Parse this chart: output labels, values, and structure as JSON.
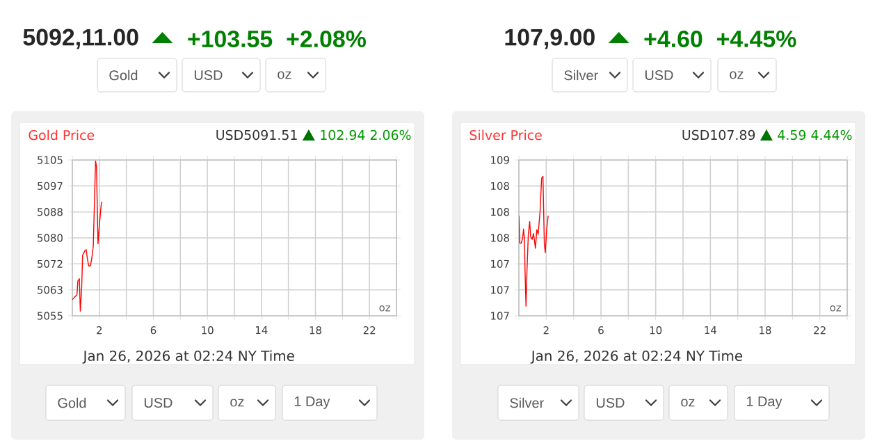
{
  "chart_data": [
    {
      "type": "line",
      "title": "Gold Price",
      "xlabel": "Jan 26, 2026 at 02:24 NY Time",
      "annotations": [
        "5092,11.00",
        "+103.55",
        "+2.08%",
        "Gold",
        "USD",
        "oz",
        "USD5091.51",
        "102.94 2.06%",
        "oz",
        "Gold",
        "USD",
        "oz",
        "1 Day"
      ],
      "x": [
        0,
        0.17,
        0.34,
        0.41,
        0.52,
        0.59,
        0.69,
        0.76,
        0.93,
        1.03,
        1.1,
        1.21,
        1.34,
        1.45,
        1.55,
        1.62,
        1.72,
        1.79,
        1.9,
        2.0,
        2.14,
        2.2
      ],
      "values": [
        5060.2,
        5061.0,
        5061.7,
        5066.2,
        5066.9,
        5056.5,
        5064.0,
        5074.4,
        5075.9,
        5076.2,
        5073.7,
        5071.0,
        5071.0,
        5073.7,
        5077.4,
        5088.6,
        5104.7,
        5102.8,
        5078.1,
        5084.1,
        5090.8,
        5091.6
      ],
      "color": "#ff0000",
      "marker": "none",
      "grid": true,
      "xlim": [
        0,
        24
      ],
      "xticks": [
        {
          "value": 0,
          "label": null
        },
        2,
        {
          "value": 4,
          "label": null
        },
        6,
        {
          "value": 8,
          "label": null
        },
        10,
        {
          "value": 12,
          "label": null
        },
        14,
        {
          "value": 16,
          "label": null
        },
        18,
        {
          "value": 20,
          "label": null
        },
        22,
        {
          "value": 24,
          "label": null
        }
      ],
      "ylim": [
        5055,
        5105
      ],
      "yticks": [
        5055,
        {
          "value": 5063.33,
          "label": "5063"
        },
        {
          "value": 5071.67,
          "label": "5072"
        },
        5080,
        {
          "value": 5088.33,
          "label": "5088"
        },
        {
          "value": 5096.67,
          "label": "5097"
        },
        5105
      ]
    },
    {
      "type": "line",
      "title": "Silver Price",
      "xlabel": "Jan 26, 2026 at 02:24 NY Time",
      "annotations": [
        "107,9.00",
        "+4.60",
        "+4.45%",
        "Silver",
        "USD",
        "oz",
        "USD107.89",
        "4.59 4.44%",
        "oz",
        "Silver",
        "USD",
        "oz",
        "1 Day"
      ],
      "x": [
        0,
        0.07,
        0.17,
        0.28,
        0.34,
        0.41,
        0.45,
        0.52,
        0.59,
        0.69,
        0.79,
        0.86,
        0.97,
        1.07,
        1.21,
        1.31,
        1.41,
        1.55,
        1.66,
        1.76,
        1.86,
        1.93,
        2.03,
        2.14
      ],
      "values": [
        108.05,
        107.68,
        107.68,
        107.75,
        107.87,
        107.73,
        107.3,
        106.83,
        107.3,
        107.8,
        107.97,
        107.77,
        107.73,
        107.81,
        107.61,
        107.86,
        107.8,
        108.11,
        108.55,
        108.58,
        107.67,
        107.55,
        107.86,
        108.05
      ],
      "color": "#ff0000",
      "marker": "none",
      "grid": true,
      "xlim": [
        0,
        24
      ],
      "xticks": [
        {
          "value": 0,
          "label": null
        },
        2,
        {
          "value": 4,
          "label": null
        },
        6,
        {
          "value": 8,
          "label": null
        },
        10,
        {
          "value": 12,
          "label": null
        },
        14,
        {
          "value": 16,
          "label": null
        },
        18,
        {
          "value": 20,
          "label": null
        },
        22,
        {
          "value": 24,
          "label": null
        }
      ],
      "ylim": [
        106.7,
        108.8
      ],
      "yticks": [
        {
          "value": 106.7,
          "label": "107"
        },
        {
          "value": 107.05,
          "label": "107"
        },
        {
          "value": 107.4,
          "label": "107"
        },
        {
          "value": 107.75,
          "label": "108"
        },
        {
          "value": 108.1,
          "label": "108"
        },
        {
          "value": 108.45,
          "label": "108"
        },
        {
          "value": 108.8,
          "label": "109"
        }
      ]
    }
  ]
}
